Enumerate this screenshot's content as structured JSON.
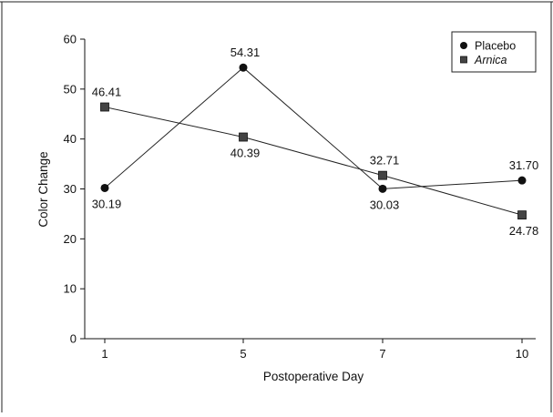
{
  "chart_data": {
    "type": "line",
    "title": "",
    "xlabel": "Postoperative Day",
    "ylabel": "Color Change",
    "categories": [
      "1",
      "5",
      "7",
      "10"
    ],
    "ylim": [
      0,
      60
    ],
    "yticks": [
      "0",
      "10",
      "20",
      "30",
      "40",
      "50",
      "60"
    ],
    "grid": false,
    "legend_position": "top-right",
    "series": [
      {
        "name": "Placebo",
        "marker": "circle",
        "color": "#111111",
        "values": [
          30.19,
          54.31,
          30.03,
          31.7
        ],
        "labels": [
          "30.19",
          "54.31",
          "30.03",
          "31.70"
        ],
        "label_positions": [
          "below",
          "above",
          "below",
          "above"
        ]
      },
      {
        "name": "Arnica",
        "name_style": "italic",
        "marker": "square",
        "color": "#444444",
        "values": [
          46.41,
          40.39,
          32.71,
          24.78
        ],
        "labels": [
          "46.41",
          "40.39",
          "32.71",
          "24.78"
        ],
        "label_positions": [
          "above",
          "below",
          "above",
          "below"
        ]
      }
    ]
  }
}
